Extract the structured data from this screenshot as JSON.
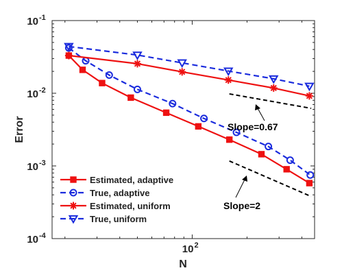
{
  "chart_data": {
    "type": "line",
    "xlabel": "N",
    "ylabel": "Error",
    "xscale": "log",
    "yscale": "log",
    "xlim": [
      17,
      470
    ],
    "ylim": [
      0.0001,
      0.1
    ],
    "x_ticks": [
      {
        "value": 100,
        "base": "10",
        "exp": "2"
      }
    ],
    "y_ticks": [
      {
        "value": 0.1,
        "base": "10",
        "exp": "-1"
      },
      {
        "value": 0.01,
        "base": "10",
        "exp": "-2"
      },
      {
        "value": 0.001,
        "base": "10",
        "exp": "-3"
      },
      {
        "value": 0.0001,
        "base": "10",
        "exp": "-4"
      }
    ],
    "grid": false,
    "legend": "bottom-left",
    "series": [
      {
        "name": "Estimated, adaptive",
        "color": "#ee1111",
        "line_style": "solid",
        "marker": "square",
        "points": [
          [
            21,
            0.033
          ],
          [
            25,
            0.021
          ],
          [
            32,
            0.0138
          ],
          [
            46,
            0.0087
          ],
          [
            72,
            0.0054
          ],
          [
            108,
            0.0035
          ],
          [
            160,
            0.0023
          ],
          [
            240,
            0.00145
          ],
          [
            330,
            0.0009
          ],
          [
            440,
            0.00058
          ]
        ]
      },
      {
        "name": "True, adaptive",
        "color": "#1a2bdd",
        "line_style": "dashed",
        "marker": "circle",
        "points": [
          [
            21,
            0.042
          ],
          [
            26,
            0.028
          ],
          [
            35,
            0.0178
          ],
          [
            50,
            0.0113
          ],
          [
            78,
            0.0072
          ],
          [
            116,
            0.0045
          ],
          [
            175,
            0.0029
          ],
          [
            262,
            0.00185
          ],
          [
            345,
            0.0012
          ],
          [
            445,
            0.00075
          ]
        ]
      },
      {
        "name": "Estimated, uniform",
        "color": "#ee1111",
        "line_style": "solid",
        "marker": "star",
        "points": [
          [
            21,
            0.033
          ],
          [
            50,
            0.0255
          ],
          [
            88,
            0.0197
          ],
          [
            158,
            0.0152
          ],
          [
            280,
            0.0118
          ],
          [
            440,
            0.0092
          ]
        ]
      },
      {
        "name": "True, uniform",
        "color": "#1a2bdd",
        "line_style": "dashed",
        "marker": "triangle-down",
        "points": [
          [
            21,
            0.044
          ],
          [
            50,
            0.0335
          ],
          [
            88,
            0.0262
          ],
          [
            158,
            0.0202
          ],
          [
            280,
            0.0158
          ],
          [
            440,
            0.0125
          ]
        ]
      }
    ],
    "reference_lines": [
      {
        "label": "Slope=0.67",
        "points": [
          [
            160,
            0.0098
          ],
          [
            450,
            0.0062
          ]
        ]
      },
      {
        "label": "Slope=2",
        "points": [
          [
            160,
            0.00117
          ],
          [
            450,
            0.00038
          ]
        ]
      }
    ]
  }
}
